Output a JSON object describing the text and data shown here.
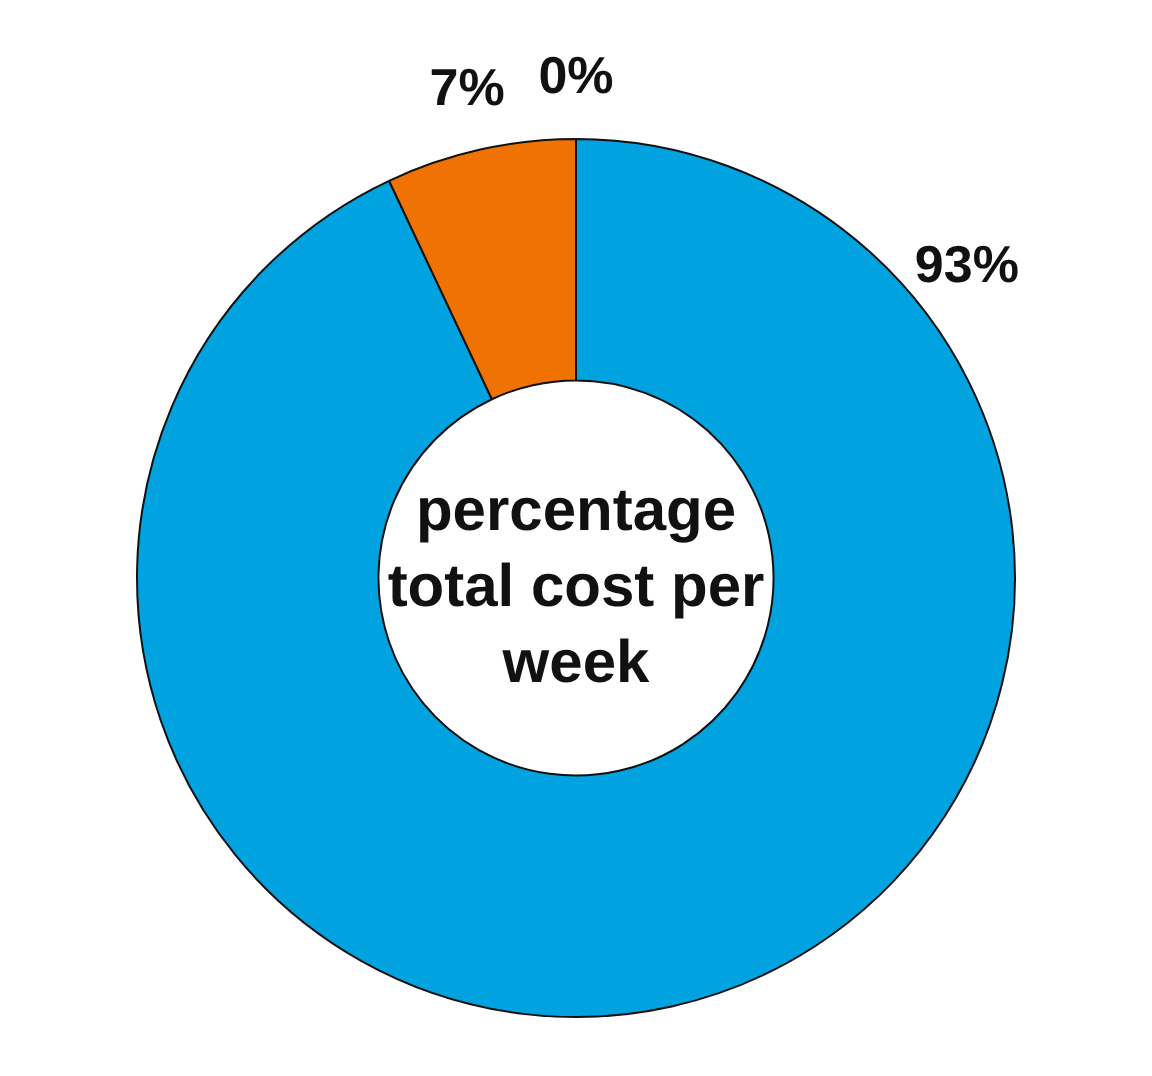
{
  "chart_data": {
    "type": "donut",
    "title": "percentage total cost per week",
    "categories": [
      null,
      null,
      null
    ],
    "values": [
      93,
      7,
      0
    ],
    "colors": [
      "#00a3e0",
      "#ef7203",
      "#a5a5a5"
    ],
    "value_labels": [
      "93%",
      "7%",
      "0%"
    ],
    "legend": false
  }
}
